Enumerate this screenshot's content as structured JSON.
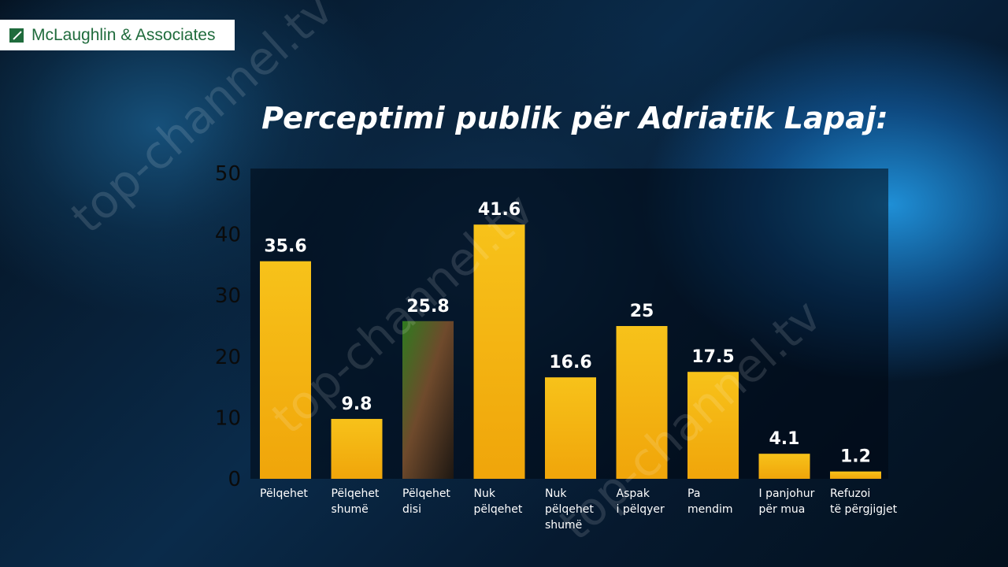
{
  "branding": {
    "logo_text": "McLaughlin & Associates",
    "watermark_text": "top-channel.tv"
  },
  "colors": {
    "bar_top": "#f7c21a",
    "bar_bottom": "#f0a50a",
    "axis_text": "#0b0b0b",
    "label_text": "#ffffff"
  },
  "chart_data": {
    "type": "bar",
    "title": "Perceptimi publik për Adriatik Lapaj:",
    "categories": [
      [
        "Pëlqehet"
      ],
      [
        "Pëlqehet",
        "shumë"
      ],
      [
        "Pëlqehet",
        "disi"
      ],
      [
        "Nuk",
        "pëlqehet"
      ],
      [
        "Nuk",
        "pëlqehet",
        "shumë"
      ],
      [
        "Aspak",
        "i pëlqyer"
      ],
      [
        "Pa",
        "mendim"
      ],
      [
        "I panjohur",
        "për mua"
      ],
      [
        "Refuzoi",
        "të përgjigjet"
      ]
    ],
    "values": [
      35.6,
      9.8,
      25.8,
      41.6,
      16.6,
      25,
      17.5,
      4.1,
      1.2
    ],
    "value_labels": [
      "35.6",
      "9.8",
      "25.8",
      "41.6",
      "16.6",
      "25",
      "17.5",
      "4.1",
      "1.2"
    ],
    "yticks": [
      "0",
      "10",
      "20",
      "30",
      "40",
      "50"
    ],
    "ylim": [
      0,
      50
    ],
    "grid": false,
    "legend": "none"
  }
}
